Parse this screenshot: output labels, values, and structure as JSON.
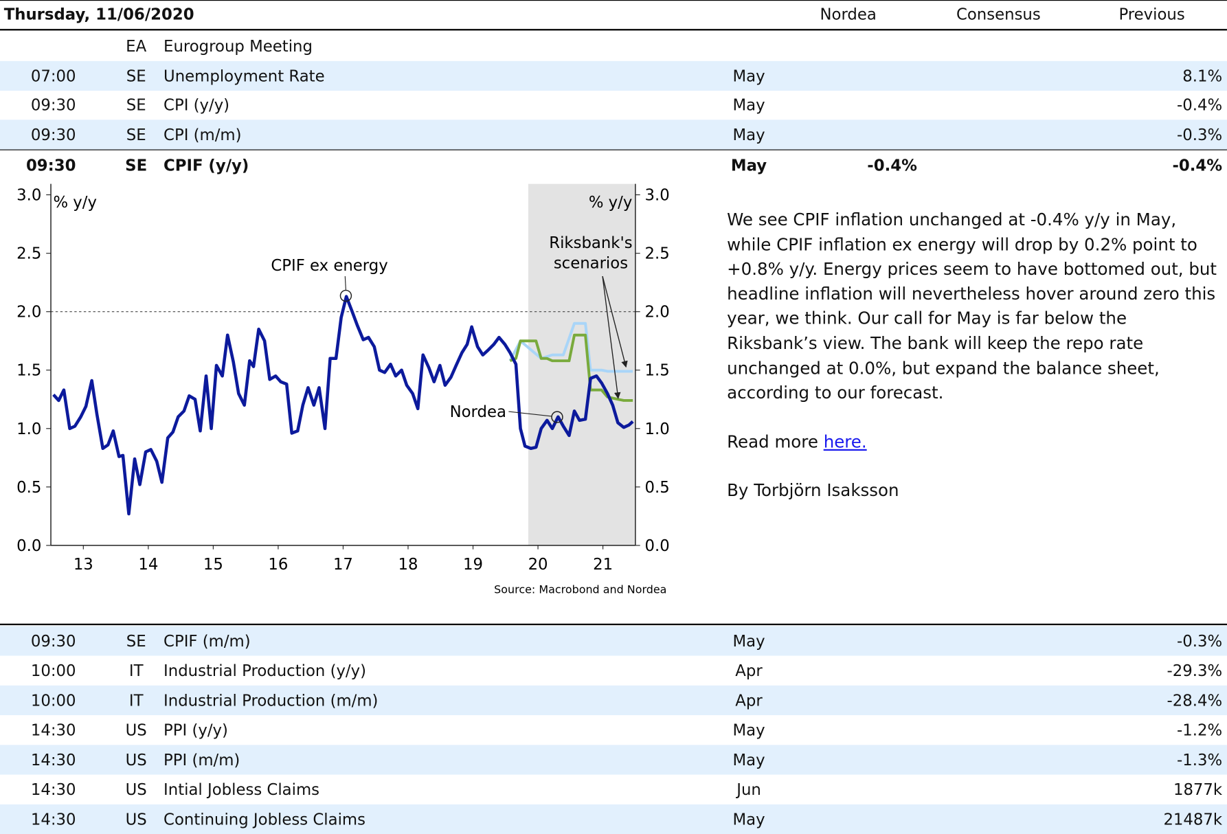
{
  "header": {
    "date": "Thursday, 11/06/2020",
    "columns": [
      "Nordea",
      "Consensus",
      "Previous"
    ]
  },
  "rows_top": [
    {
      "country": "EA",
      "event": "Eurogroup Meeting"
    },
    {
      "time": "07:00",
      "country": "SE",
      "event": "Unemployment Rate",
      "period": "May",
      "previous": "8.1%",
      "shaded": true
    },
    {
      "time": "09:30",
      "country": "SE",
      "event": "CPI (y/y)",
      "period": "May",
      "previous": "-0.4%"
    },
    {
      "time": "09:30",
      "country": "SE",
      "event": "CPI (m/m)",
      "period": "May",
      "previous": "-0.3%",
      "shaded": true
    }
  ],
  "featured": {
    "time": "09:30",
    "country": "SE",
    "event": "CPIF (y/y)",
    "period": "May",
    "nordea": "-0.4%",
    "previous": "-0.4%"
  },
  "chart": {
    "type": "line",
    "left_unit": "% y/y",
    "right_unit": "% y/y",
    "annotations": {
      "cpif_ex_energy": "CPIF ex energy",
      "nordea": "Nordea",
      "riksbank": [
        "Riksbank's",
        "scenarios"
      ]
    },
    "source": "Source: Macrobond and Nordea",
    "xlim": [
      2013,
      2022
    ],
    "ylim": [
      0,
      3
    ],
    "xticks": [
      {
        "value": 2013.5,
        "label": "13"
      },
      {
        "value": 2014.5,
        "label": "14"
      },
      {
        "value": 2015.5,
        "label": "15"
      },
      {
        "value": 2016.5,
        "label": "16"
      },
      {
        "value": 2017.5,
        "label": "17"
      },
      {
        "value": 2018.5,
        "label": "18"
      },
      {
        "value": 2019.5,
        "label": "19"
      },
      {
        "value": 2020.5,
        "label": "20"
      },
      {
        "value": 2021.5,
        "label": "21"
      }
    ],
    "yticks": [
      {
        "value": 0,
        "label": "0.0"
      },
      {
        "value": 0.5,
        "label": "0.5"
      },
      {
        "value": 1,
        "label": "1.0"
      },
      {
        "value": 1.5,
        "label": "1.5"
      },
      {
        "value": 2,
        "label": "2.0"
      },
      {
        "value": 2.5,
        "label": "2.5"
      },
      {
        "value": 3,
        "label": "3.0"
      }
    ],
    "reference_line": 2,
    "shaded_region": [
      2020.35,
      2022
    ],
    "series": [
      {
        "color": "#a9d5f8",
        "x": [
          2020.07,
          2020.23,
          2020.55,
          2020.72,
          2020.89,
          2021.06,
          2021.23,
          2021.31,
          2021.48,
          2021.57,
          2021.96
        ],
        "values": [
          1.58,
          1.75,
          1.6,
          1.63,
          1.63,
          1.9,
          1.9,
          1.5,
          1.5,
          1.49,
          1.49
        ]
      },
      {
        "color": "#79aa3c",
        "x": [
          2020.07,
          2020.16,
          2020.23,
          2020.39,
          2020.47,
          2020.55,
          2020.64,
          2020.72,
          2020.81,
          2020.89,
          2020.98,
          2021.06,
          2021.23,
          2021.31,
          2021.48,
          2021.57,
          2021.73,
          2021.82,
          2021.96
        ],
        "values": [
          1.58,
          1.6,
          1.75,
          1.75,
          1.75,
          1.6,
          1.6,
          1.58,
          1.58,
          1.58,
          1.58,
          1.8,
          1.8,
          1.33,
          1.33,
          1.27,
          1.25,
          1.24,
          1.24
        ]
      },
      {
        "color": "#0c1a9c",
        "x": [
          2013.04,
          2013.12,
          2013.2,
          2013.29,
          2013.37,
          2013.46,
          2013.54,
          2013.63,
          2013.71,
          2013.8,
          2013.88,
          2013.96,
          2014.05,
          2014.11,
          2014.2,
          2014.29,
          2014.37,
          2014.46,
          2014.54,
          2014.63,
          2014.71,
          2014.8,
          2014.88,
          2014.96,
          2015.05,
          2015.13,
          2015.22,
          2015.3,
          2015.39,
          2015.47,
          2015.55,
          2015.64,
          2015.72,
          2015.81,
          2015.89,
          2015.98,
          2016.06,
          2016.12,
          2016.2,
          2016.29,
          2016.37,
          2016.46,
          2016.54,
          2016.63,
          2016.71,
          2016.8,
          2016.88,
          2016.96,
          2017.05,
          2017.13,
          2017.22,
          2017.3,
          2017.39,
          2017.47,
          2017.55,
          2017.64,
          2017.72,
          2017.81,
          2017.89,
          2017.98,
          2018.06,
          2018.14,
          2018.23,
          2018.31,
          2018.4,
          2018.48,
          2018.57,
          2018.65,
          2018.73,
          2018.82,
          2018.9,
          2018.99,
          2019.07,
          2019.16,
          2019.24,
          2019.33,
          2019.41,
          2019.48,
          2019.57,
          2019.65,
          2019.73,
          2019.82,
          2019.9,
          2019.99,
          2020.07,
          2020.16,
          2020.23,
          2020.3,
          2020.39,
          2020.47,
          2020.55,
          2020.64,
          2020.72,
          2020.81,
          2020.89,
          2020.98,
          2021.06,
          2021.14,
          2021.23,
          2021.31,
          2021.4,
          2021.48,
          2021.57,
          2021.65,
          2021.73,
          2021.82,
          2021.9,
          2021.96
        ],
        "values": [
          1.29,
          1.24,
          1.33,
          1.0,
          1.02,
          1.1,
          1.19,
          1.41,
          1.12,
          0.83,
          0.86,
          0.98,
          0.76,
          0.77,
          0.27,
          0.74,
          0.52,
          0.8,
          0.82,
          0.72,
          0.54,
          0.92,
          0.97,
          1.1,
          1.15,
          1.28,
          1.25,
          0.98,
          1.45,
          1.0,
          1.54,
          1.45,
          1.8,
          1.57,
          1.3,
          1.2,
          1.58,
          1.53,
          1.85,
          1.75,
          1.42,
          1.45,
          1.4,
          1.38,
          0.96,
          0.98,
          1.2,
          1.35,
          1.2,
          1.35,
          1.0,
          1.6,
          1.6,
          1.95,
          2.13,
          2.0,
          1.88,
          1.76,
          1.78,
          1.7,
          1.5,
          1.48,
          1.55,
          1.45,
          1.5,
          1.37,
          1.3,
          1.17,
          1.63,
          1.52,
          1.4,
          1.54,
          1.37,
          1.44,
          1.54,
          1.65,
          1.72,
          1.87,
          1.7,
          1.63,
          1.67,
          1.72,
          1.78,
          1.72,
          1.65,
          1.55,
          1.0,
          0.85,
          0.83,
          0.84,
          1.0,
          1.07,
          1.0,
          1.1,
          1.02,
          0.94,
          1.15,
          1.07,
          1.08,
          1.43,
          1.45,
          1.39,
          1.3,
          1.2,
          1.05,
          1.01,
          1.03,
          1.06
        ]
      }
    ]
  },
  "commentary": {
    "paragraphs": [
      "We see CPIF inflation unchanged at -0.4% y/y in May, while CPIF inflation ex energy will drop by 0.2% point to +0.8% y/y. Energy prices seem to have bottomed out, but headline inflation will nevertheless hover around zero this year, we think. Our call for May is far below the Riksbank’s view. The bank will keep the repo rate unchanged at 0.0%, but expand the balance sheet, according to our forecast."
    ],
    "read_more": "Read more",
    "link": "here.",
    "byline": "By Torbjörn Isaksson"
  },
  "rows_bottom": [
    {
      "time": "09:30",
      "country": "SE",
      "event": "CPIF (m/m)",
      "period": "May",
      "previous": "-0.3%",
      "shaded": true
    },
    {
      "time": "10:00",
      "country": "IT",
      "event": "Industrial Production (y/y)",
      "period": "Apr",
      "previous": "-29.3%"
    },
    {
      "time": "10:00",
      "country": "IT",
      "event": "Industrial Production (m/m)",
      "period": "Apr",
      "previous": "-28.4%",
      "shaded": true
    },
    {
      "time": "14:30",
      "country": "US",
      "event": "PPI (y/y)",
      "period": "May",
      "previous": "-1.2%"
    },
    {
      "time": "14:30",
      "country": "US",
      "event": "PPI (m/m)",
      "period": "May",
      "previous": "-1.3%",
      "shaded": true
    },
    {
      "time": "14:30",
      "country": "US",
      "event": "Intial Jobless Claims",
      "period": "Jun",
      "previous": "1877k"
    },
    {
      "time": "14:30",
      "country": "US",
      "event": "Continuing Jobless Claims",
      "period": "May",
      "previous": "21487k",
      "shaded": true
    }
  ]
}
